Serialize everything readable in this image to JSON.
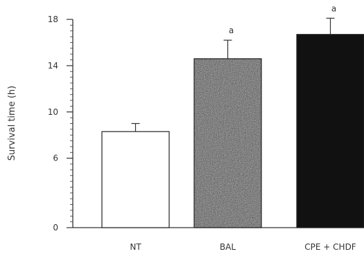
{
  "chart_data": {
    "type": "bar",
    "title": "",
    "xlabel": "",
    "ylabel": "Survival time (h)",
    "ylim": [
      0,
      18
    ],
    "yticks": [
      0,
      6,
      10,
      14,
      18
    ],
    "grid": false,
    "categories": [
      "NT",
      "BAL",
      "CPE + CHDF"
    ],
    "values": [
      8.3,
      14.6,
      16.7
    ],
    "errors": [
      0.7,
      1.6,
      1.4
    ],
    "annotations": [
      "",
      "a",
      "a"
    ],
    "bar_fills": [
      "white",
      "speckled-gray",
      "black"
    ],
    "colors": {
      "axis": "#333333",
      "bar_outline": "#222222",
      "bar_white": "#ffffff",
      "bar_gray": "#5a5a5a",
      "bar_black": "#111111"
    }
  }
}
